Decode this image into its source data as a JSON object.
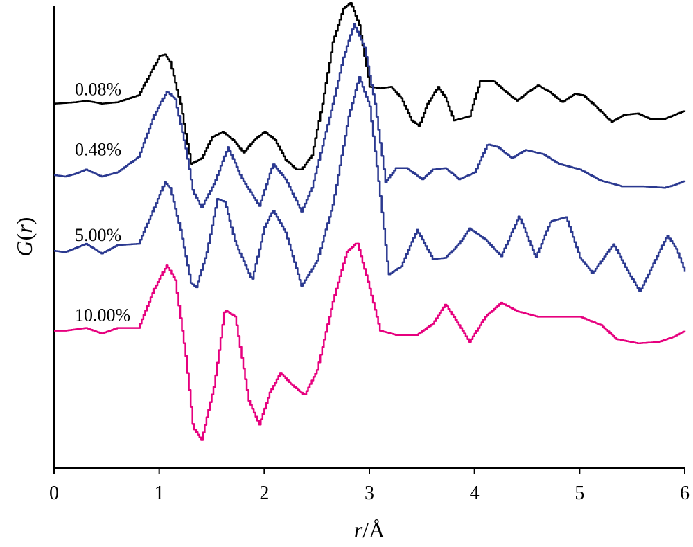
{
  "chart_data": {
    "type": "line",
    "title": "",
    "xlabel_italic": "r",
    "xlabel_unit": "/Å",
    "ylabel_italic": "G",
    "ylabel_open": "(",
    "ylabel_arg": "r",
    "ylabel_close": ")",
    "xlim": [
      0,
      6
    ],
    "x_ticks": [
      "0",
      "1",
      "2",
      "3",
      "4",
      "5",
      "6"
    ],
    "y_ticks_shown": false,
    "grid": false,
    "legend": "inline labels to the left of each curve",
    "note": "Curves are vertically offset; y values are in relative G(r) units (offset included).",
    "ylim": [
      -13.0,
      3.5
    ],
    "series": [
      {
        "name": "0.08%",
        "color": "#000000",
        "x": [
          0,
          0.2,
          0.3,
          0.45,
          0.6,
          0.8,
          0.9,
          1.0,
          1.05,
          1.1,
          1.2,
          1.3,
          1.4,
          1.5,
          1.6,
          1.7,
          1.8,
          1.9,
          2.0,
          2.1,
          2.2,
          2.3,
          2.35,
          2.45,
          2.55,
          2.65,
          2.75,
          2.82,
          2.9,
          3.0,
          3.1,
          3.2,
          3.3,
          3.4,
          3.47,
          3.55,
          3.65,
          3.72,
          3.8,
          3.95,
          4.05,
          4.18,
          4.3,
          4.4,
          4.5,
          4.6,
          4.72,
          4.83,
          4.95,
          5.03,
          5.15,
          5.3,
          5.42,
          5.55,
          5.67,
          5.8,
          5.9,
          6.0
        ],
        "y": [
          0.0,
          0.05,
          0.1,
          0.0,
          0.05,
          0.3,
          1.0,
          1.7,
          1.75,
          1.5,
          0.0,
          -2.15,
          -1.95,
          -1.2,
          -1.0,
          -1.3,
          -1.75,
          -1.3,
          -1.0,
          -1.3,
          -2.0,
          -2.35,
          -2.35,
          -1.85,
          0.0,
          2.2,
          3.4,
          3.6,
          2.8,
          0.6,
          0.55,
          0.6,
          0.2,
          -0.6,
          -0.8,
          0.0,
          0.6,
          0.2,
          -0.6,
          -0.45,
          0.8,
          0.8,
          0.4,
          0.1,
          0.4,
          0.65,
          0.4,
          0.05,
          0.35,
          0.3,
          -0.1,
          -0.65,
          -0.4,
          -0.35,
          -0.55,
          -0.55,
          -0.4,
          -0.25
        ]
      },
      {
        "name": "0.48%",
        "color": "#2b3990",
        "x": [
          0,
          0.1,
          0.2,
          0.3,
          0.45,
          0.6,
          0.8,
          0.95,
          1.07,
          1.15,
          1.25,
          1.32,
          1.4,
          1.52,
          1.65,
          1.78,
          1.95,
          2.08,
          2.2,
          2.35,
          2.45,
          2.55,
          2.65,
          2.75,
          2.85,
          2.95,
          3.05,
          3.15,
          3.25,
          3.35,
          3.5,
          3.6,
          3.72,
          3.85,
          4.0,
          4.12,
          4.22,
          4.35,
          4.48,
          4.65,
          4.8,
          5.0,
          5.2,
          5.4,
          5.6,
          5.8,
          5.9,
          6.0
        ],
        "y": [
          -2.55,
          -2.6,
          -2.5,
          -2.35,
          -2.6,
          -2.45,
          -1.9,
          -0.4,
          0.45,
          0.15,
          -1.6,
          -3.15,
          -3.7,
          -2.85,
          -1.55,
          -2.65,
          -3.65,
          -2.15,
          -2.7,
          -3.85,
          -3.0,
          -1.5,
          0.0,
          1.65,
          2.85,
          2.0,
          0.0,
          -2.8,
          -2.3,
          -2.3,
          -2.7,
          -2.35,
          -2.3,
          -2.7,
          -2.45,
          -1.45,
          -1.55,
          -1.95,
          -1.65,
          -1.8,
          -2.15,
          -2.35,
          -2.75,
          -2.95,
          -2.95,
          -3.0,
          -2.9,
          -2.75
        ]
      },
      {
        "name": "5.00%",
        "color": "#2b3990",
        "x": [
          0,
          0.1,
          0.3,
          0.45,
          0.6,
          0.8,
          0.95,
          1.05,
          1.1,
          1.2,
          1.3,
          1.35,
          1.45,
          1.55,
          1.62,
          1.72,
          1.88,
          2.0,
          2.08,
          2.2,
          2.35,
          2.5,
          2.65,
          2.8,
          2.9,
          3.0,
          3.1,
          3.18,
          3.3,
          3.45,
          3.6,
          3.72,
          3.85,
          3.95,
          4.1,
          4.25,
          4.42,
          4.58,
          4.72,
          4.87,
          5.0,
          5.12,
          5.32,
          5.45,
          5.57,
          5.7,
          5.83,
          5.92,
          6.0
        ],
        "y": [
          -5.25,
          -5.3,
          -5.0,
          -5.35,
          -5.05,
          -5.0,
          -3.7,
          -2.8,
          -3.0,
          -4.5,
          -6.4,
          -6.55,
          -5.3,
          -3.4,
          -3.5,
          -4.95,
          -6.3,
          -4.4,
          -3.8,
          -4.6,
          -6.5,
          -5.6,
          -3.6,
          -0.45,
          0.95,
          -0.1,
          -3.3,
          -6.1,
          -5.8,
          -4.5,
          -5.55,
          -5.5,
          -5.0,
          -4.45,
          -4.85,
          -5.45,
          -4.0,
          -5.5,
          -4.2,
          -4.05,
          -5.5,
          -6.05,
          -5.0,
          -5.95,
          -6.7,
          -5.7,
          -4.7,
          -5.2,
          -6.0
        ]
      },
      {
        "name": "10.00%",
        "color": "#e6007e",
        "x": [
          0,
          0.1,
          0.3,
          0.45,
          0.6,
          0.8,
          0.95,
          1.07,
          1.15,
          1.25,
          1.32,
          1.4,
          1.52,
          1.62,
          1.72,
          1.85,
          1.95,
          2.05,
          2.15,
          2.25,
          2.38,
          2.5,
          2.65,
          2.78,
          2.88,
          2.98,
          3.1,
          3.25,
          3.45,
          3.6,
          3.72,
          3.85,
          3.95,
          4.1,
          4.25,
          4.4,
          4.6,
          4.8,
          5.0,
          5.2,
          5.35,
          5.55,
          5.75,
          5.9,
          6.0
        ],
        "y": [
          -8.1,
          -8.1,
          -8.0,
          -8.2,
          -8.0,
          -8.0,
          -6.6,
          -5.75,
          -6.3,
          -9.0,
          -11.55,
          -12.0,
          -10.05,
          -7.35,
          -7.6,
          -10.6,
          -11.45,
          -10.3,
          -9.6,
          -10.0,
          -10.4,
          -9.5,
          -7.05,
          -5.3,
          -4.95,
          -6.3,
          -8.1,
          -8.25,
          -8.25,
          -7.85,
          -7.15,
          -7.9,
          -8.5,
          -7.6,
          -7.1,
          -7.4,
          -7.6,
          -7.6,
          -7.6,
          -7.9,
          -8.4,
          -8.55,
          -8.5,
          -8.3,
          -8.1
        ]
      }
    ],
    "label_anchor_y": [
      0.3,
      -1.85,
      -4.9,
      -7.75
    ]
  }
}
